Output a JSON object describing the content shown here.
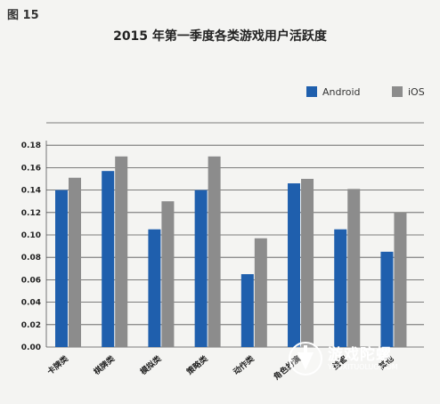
{
  "figure_label": "图 15",
  "chart_data": {
    "type": "bar",
    "title": "2015 年第一季度各类游戏用户活跃度",
    "categories": [
      "卡牌类",
      "棋牌类",
      "模拟类",
      "策略类",
      "动作类",
      "角色扮演",
      "益智",
      "其他"
    ],
    "series": [
      {
        "name": "Android",
        "color": "#1f5fad",
        "values": [
          0.14,
          0.157,
          0.105,
          0.14,
          0.065,
          0.146,
          0.105,
          0.085
        ]
      },
      {
        "name": "iOS",
        "color": "#8c8c8c",
        "values": [
          0.151,
          0.17,
          0.13,
          0.17,
          0.097,
          0.15,
          0.141,
          0.12
        ]
      }
    ],
    "yticks": [
      "0.00",
      "0.02",
      "0.04",
      "0.06",
      "0.08",
      "0.10",
      "0.12",
      "0.14",
      "0.16",
      "0.18"
    ],
    "ylim": [
      0,
      0.2
    ],
    "grid": true,
    "legend": "top-right"
  },
  "watermark": {
    "name": "游戏陀螺",
    "url": "YOUXITUOLUO.COM"
  }
}
